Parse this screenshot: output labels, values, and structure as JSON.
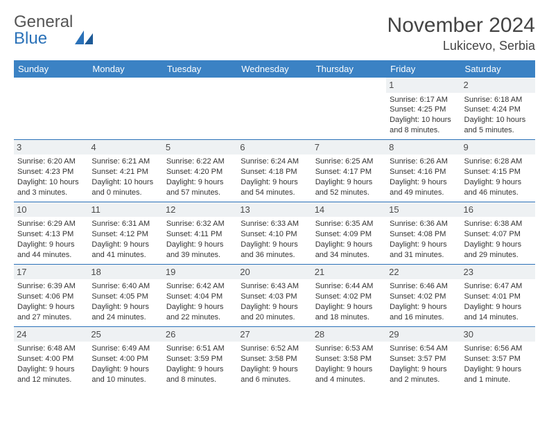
{
  "brand": {
    "word1": "General",
    "word2": "Blue"
  },
  "title": {
    "month": "November 2024",
    "location": "Lukicevo, Serbia"
  },
  "colors": {
    "header_bg": "#3b82c4",
    "header_text": "#ffffff",
    "daynum_bg": "#eef1f3",
    "border": "#2a71b8",
    "body_text": "#333333",
    "brand_gray": "#555555",
    "brand_blue": "#2a71b8"
  },
  "day_names": [
    "Sunday",
    "Monday",
    "Tuesday",
    "Wednesday",
    "Thursday",
    "Friday",
    "Saturday"
  ],
  "weeks": [
    [
      null,
      null,
      null,
      null,
      null,
      {
        "n": "1",
        "sr": "Sunrise: 6:17 AM",
        "ss": "Sunset: 4:25 PM",
        "dl": "Daylight: 10 hours and 8 minutes."
      },
      {
        "n": "2",
        "sr": "Sunrise: 6:18 AM",
        "ss": "Sunset: 4:24 PM",
        "dl": "Daylight: 10 hours and 5 minutes."
      }
    ],
    [
      {
        "n": "3",
        "sr": "Sunrise: 6:20 AM",
        "ss": "Sunset: 4:23 PM",
        "dl": "Daylight: 10 hours and 3 minutes."
      },
      {
        "n": "4",
        "sr": "Sunrise: 6:21 AM",
        "ss": "Sunset: 4:21 PM",
        "dl": "Daylight: 10 hours and 0 minutes."
      },
      {
        "n": "5",
        "sr": "Sunrise: 6:22 AM",
        "ss": "Sunset: 4:20 PM",
        "dl": "Daylight: 9 hours and 57 minutes."
      },
      {
        "n": "6",
        "sr": "Sunrise: 6:24 AM",
        "ss": "Sunset: 4:18 PM",
        "dl": "Daylight: 9 hours and 54 minutes."
      },
      {
        "n": "7",
        "sr": "Sunrise: 6:25 AM",
        "ss": "Sunset: 4:17 PM",
        "dl": "Daylight: 9 hours and 52 minutes."
      },
      {
        "n": "8",
        "sr": "Sunrise: 6:26 AM",
        "ss": "Sunset: 4:16 PM",
        "dl": "Daylight: 9 hours and 49 minutes."
      },
      {
        "n": "9",
        "sr": "Sunrise: 6:28 AM",
        "ss": "Sunset: 4:15 PM",
        "dl": "Daylight: 9 hours and 46 minutes."
      }
    ],
    [
      {
        "n": "10",
        "sr": "Sunrise: 6:29 AM",
        "ss": "Sunset: 4:13 PM",
        "dl": "Daylight: 9 hours and 44 minutes."
      },
      {
        "n": "11",
        "sr": "Sunrise: 6:31 AM",
        "ss": "Sunset: 4:12 PM",
        "dl": "Daylight: 9 hours and 41 minutes."
      },
      {
        "n": "12",
        "sr": "Sunrise: 6:32 AM",
        "ss": "Sunset: 4:11 PM",
        "dl": "Daylight: 9 hours and 39 minutes."
      },
      {
        "n": "13",
        "sr": "Sunrise: 6:33 AM",
        "ss": "Sunset: 4:10 PM",
        "dl": "Daylight: 9 hours and 36 minutes."
      },
      {
        "n": "14",
        "sr": "Sunrise: 6:35 AM",
        "ss": "Sunset: 4:09 PM",
        "dl": "Daylight: 9 hours and 34 minutes."
      },
      {
        "n": "15",
        "sr": "Sunrise: 6:36 AM",
        "ss": "Sunset: 4:08 PM",
        "dl": "Daylight: 9 hours and 31 minutes."
      },
      {
        "n": "16",
        "sr": "Sunrise: 6:38 AM",
        "ss": "Sunset: 4:07 PM",
        "dl": "Daylight: 9 hours and 29 minutes."
      }
    ],
    [
      {
        "n": "17",
        "sr": "Sunrise: 6:39 AM",
        "ss": "Sunset: 4:06 PM",
        "dl": "Daylight: 9 hours and 27 minutes."
      },
      {
        "n": "18",
        "sr": "Sunrise: 6:40 AM",
        "ss": "Sunset: 4:05 PM",
        "dl": "Daylight: 9 hours and 24 minutes."
      },
      {
        "n": "19",
        "sr": "Sunrise: 6:42 AM",
        "ss": "Sunset: 4:04 PM",
        "dl": "Daylight: 9 hours and 22 minutes."
      },
      {
        "n": "20",
        "sr": "Sunrise: 6:43 AM",
        "ss": "Sunset: 4:03 PM",
        "dl": "Daylight: 9 hours and 20 minutes."
      },
      {
        "n": "21",
        "sr": "Sunrise: 6:44 AM",
        "ss": "Sunset: 4:02 PM",
        "dl": "Daylight: 9 hours and 18 minutes."
      },
      {
        "n": "22",
        "sr": "Sunrise: 6:46 AM",
        "ss": "Sunset: 4:02 PM",
        "dl": "Daylight: 9 hours and 16 minutes."
      },
      {
        "n": "23",
        "sr": "Sunrise: 6:47 AM",
        "ss": "Sunset: 4:01 PM",
        "dl": "Daylight: 9 hours and 14 minutes."
      }
    ],
    [
      {
        "n": "24",
        "sr": "Sunrise: 6:48 AM",
        "ss": "Sunset: 4:00 PM",
        "dl": "Daylight: 9 hours and 12 minutes."
      },
      {
        "n": "25",
        "sr": "Sunrise: 6:49 AM",
        "ss": "Sunset: 4:00 PM",
        "dl": "Daylight: 9 hours and 10 minutes."
      },
      {
        "n": "26",
        "sr": "Sunrise: 6:51 AM",
        "ss": "Sunset: 3:59 PM",
        "dl": "Daylight: 9 hours and 8 minutes."
      },
      {
        "n": "27",
        "sr": "Sunrise: 6:52 AM",
        "ss": "Sunset: 3:58 PM",
        "dl": "Daylight: 9 hours and 6 minutes."
      },
      {
        "n": "28",
        "sr": "Sunrise: 6:53 AM",
        "ss": "Sunset: 3:58 PM",
        "dl": "Daylight: 9 hours and 4 minutes."
      },
      {
        "n": "29",
        "sr": "Sunrise: 6:54 AM",
        "ss": "Sunset: 3:57 PM",
        "dl": "Daylight: 9 hours and 2 minutes."
      },
      {
        "n": "30",
        "sr": "Sunrise: 6:56 AM",
        "ss": "Sunset: 3:57 PM",
        "dl": "Daylight: 9 hours and 1 minute."
      }
    ]
  ]
}
